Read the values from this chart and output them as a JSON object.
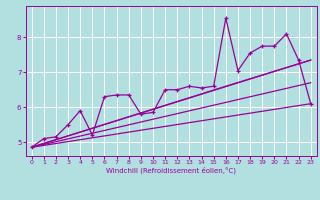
{
  "xlabel": "Windchill (Refroidissement éolien,°C)",
  "bg_color": "#b2e0e0",
  "grid_color": "#ffffff",
  "line_color": "#990099",
  "xlim": [
    -0.5,
    23.5
  ],
  "ylim": [
    4.6,
    8.9
  ],
  "yticks": [
    5,
    6,
    7,
    8
  ],
  "xticks": [
    0,
    1,
    2,
    3,
    4,
    5,
    6,
    7,
    8,
    9,
    10,
    11,
    12,
    13,
    14,
    15,
    16,
    17,
    18,
    19,
    20,
    21,
    22,
    23
  ],
  "scatter_x": [
    0,
    1,
    2,
    3,
    4,
    5,
    6,
    7,
    8,
    9,
    10,
    11,
    12,
    13,
    14,
    15,
    16,
    17,
    18,
    19,
    20,
    21,
    22,
    23
  ],
  "scatter_y": [
    4.85,
    5.1,
    5.15,
    5.5,
    5.9,
    5.2,
    6.3,
    6.35,
    6.35,
    5.8,
    5.85,
    6.5,
    6.5,
    6.6,
    6.55,
    6.6,
    8.55,
    7.05,
    7.55,
    7.75,
    7.75,
    8.1,
    7.35,
    6.1
  ],
  "line1_x": [
    0,
    23
  ],
  "line1_y": [
    4.85,
    6.1
  ],
  "line2_x": [
    0,
    23
  ],
  "line2_y": [
    4.85,
    7.35
  ],
  "line3_x": [
    0,
    23
  ],
  "line3_y": [
    4.85,
    6.7
  ],
  "line4_x": [
    0,
    16,
    23
  ],
  "line4_y": [
    4.85,
    6.6,
    7.35
  ],
  "label_fontsize": 5.0,
  "tick_fontsize": 5.0
}
